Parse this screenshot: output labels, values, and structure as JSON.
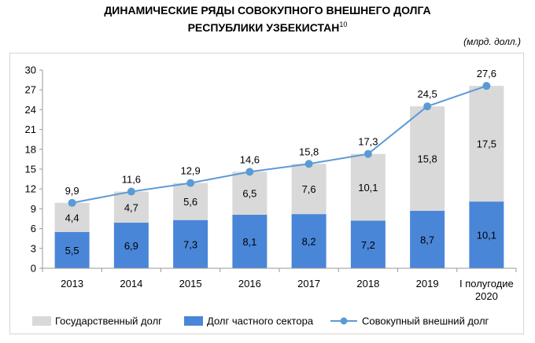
{
  "header": {
    "title_line1": "ДИНАМИЧЕСКИЕ РЯДЫ СОВОКУПНОГО ВНЕШНЕГО ДОЛГА",
    "title_line2": "РЕСПУБЛИКИ УЗБЕКИСТАН",
    "footnote_mark": "10",
    "unit": "(млрд. долл.)"
  },
  "chart_data": {
    "type": "bar",
    "categories": [
      "2013",
      "2014",
      "2015",
      "2016",
      "2017",
      "2018",
      "2019",
      "I полугодие 2020"
    ],
    "series": [
      {
        "name": "Государственный долг",
        "kind": "stacked-bar",
        "color": "#d9d9d9",
        "values": [
          4.4,
          4.7,
          5.6,
          6.5,
          7.6,
          10.1,
          15.8,
          17.5
        ]
      },
      {
        "name": "Долг частного сектора",
        "kind": "stacked-bar",
        "color": "#4a86d8",
        "values": [
          5.5,
          6.9,
          7.3,
          8.1,
          8.2,
          7.2,
          8.7,
          10.1
        ]
      },
      {
        "name": "Совокупный внешний долг",
        "kind": "line",
        "color": "#5b9bd5",
        "values": [
          9.9,
          11.6,
          12.9,
          14.6,
          15.8,
          17.3,
          24.5,
          27.6
        ]
      }
    ],
    "value_labels": {
      "public": [
        "4,4",
        "4,7",
        "5,6",
        "6,5",
        "7,6",
        "10,1",
        "15,8",
        "17,5"
      ],
      "private": [
        "5,5",
        "6,9",
        "7,3",
        "8,1",
        "8,2",
        "7,2",
        "8,7",
        "10,1"
      ],
      "total": [
        "9,9",
        "11,6",
        "12,9",
        "14,6",
        "15,8",
        "17,3",
        "24,5",
        "27,6"
      ]
    },
    "category_lines": [
      [
        "2013"
      ],
      [
        "2014"
      ],
      [
        "2015"
      ],
      [
        "2016"
      ],
      [
        "2017"
      ],
      [
        "2018"
      ],
      [
        "2019"
      ],
      [
        "I полугодие",
        "2020"
      ]
    ],
    "yticks": [
      0,
      3,
      6,
      9,
      12,
      15,
      18,
      21,
      24,
      27,
      30
    ],
    "ylim": [
      0,
      30
    ],
    "grid": false,
    "legend_position": "bottom"
  }
}
